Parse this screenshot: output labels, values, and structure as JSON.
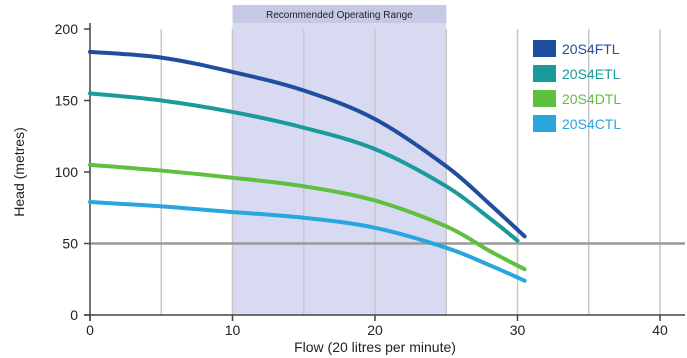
{
  "chart_data": {
    "type": "line",
    "xlabel": "Flow (20 litres per minute)",
    "ylabel": "Head (metres)",
    "xlim": [
      0,
      40
    ],
    "ylim": [
      0,
      200
    ],
    "x_ticks": [
      "0",
      "10",
      "20",
      "30",
      "40"
    ],
    "y_ticks": [
      "0",
      "50",
      "100",
      "150",
      "200"
    ],
    "grid": "vertical every 5, horizontal at 50",
    "legend_position": "top-right",
    "band": {
      "label": "Recommended Operating Range",
      "x_range": [
        10,
        25
      ],
      "color": "#d7daf0"
    },
    "series": [
      {
        "name": "20S4FTL",
        "color": "#1f4e9e",
        "points": [
          [
            0,
            184
          ],
          [
            5,
            180
          ],
          [
            10,
            170
          ],
          [
            15,
            157
          ],
          [
            20,
            137
          ],
          [
            25,
            104
          ],
          [
            28,
            78
          ],
          [
            30.5,
            55
          ]
        ]
      },
      {
        "name": "20S4ETL",
        "color": "#1a9a9a",
        "points": [
          [
            0,
            155
          ],
          [
            5,
            150
          ],
          [
            10,
            142
          ],
          [
            15,
            131
          ],
          [
            20,
            116
          ],
          [
            25,
            90
          ],
          [
            28,
            68
          ],
          [
            30,
            52
          ]
        ]
      },
      {
        "name": "20S4DTL",
        "color": "#5fbf3f",
        "points": [
          [
            0,
            105
          ],
          [
            5,
            101
          ],
          [
            10,
            96
          ],
          [
            15,
            90
          ],
          [
            20,
            80
          ],
          [
            25,
            62
          ],
          [
            28,
            45
          ],
          [
            30.5,
            32
          ]
        ]
      },
      {
        "name": "20S4CTL",
        "color": "#2aa6de",
        "points": [
          [
            0,
            79
          ],
          [
            5,
            76
          ],
          [
            10,
            72
          ],
          [
            15,
            68
          ],
          [
            20,
            61
          ],
          [
            25,
            47
          ],
          [
            28,
            35
          ],
          [
            30.5,
            24
          ]
        ]
      }
    ]
  }
}
